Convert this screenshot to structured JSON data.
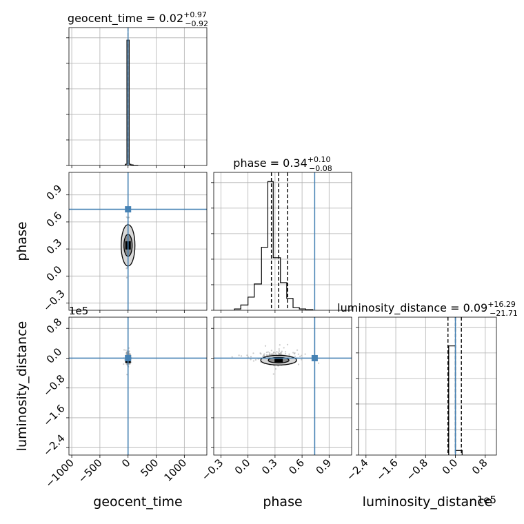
{
  "chart_data": {
    "type": "corner",
    "parameters": [
      {
        "name": "geocent_time",
        "xlabel": "geocent_time",
        "title_prefix": "geocent_time = ",
        "median": "0.02",
        "plus": "+0.97",
        "minus": "−0.92",
        "range": [
          -1050,
          1400
        ],
        "ticks": [
          -1000,
          -500,
          0,
          500,
          1000
        ],
        "tick_labels": [
          "−1000",
          "−500",
          "0",
          "500",
          "1000"
        ],
        "truth": 0,
        "hist_bins": [
          -50,
          -20,
          20,
          50,
          90,
          180
        ],
        "hist_values": [
          0.01,
          1.0,
          0.01,
          0.005,
          0.0
        ],
        "quantiles": [
          -0.9,
          0.02,
          0.99
        ],
        "hist_ylim": [
          0,
          1.1
        ]
      },
      {
        "name": "phase",
        "xlabel": "phase",
        "ylabel": "phase",
        "title_prefix": "phase = ",
        "median": "0.34",
        "plus": "+0.10",
        "minus": "−0.08",
        "range": [
          -0.38,
          1.15
        ],
        "ticks": [
          -0.3,
          0.0,
          0.3,
          0.6,
          0.9
        ],
        "tick_labels": [
          "−0.3",
          "0.0",
          "0.3",
          "0.6",
          "0.9"
        ],
        "truth": 0.74,
        "hist_bins": [
          -0.15,
          -0.08,
          0.0,
          0.07,
          0.15,
          0.22,
          0.28,
          0.36,
          0.43,
          0.5,
          0.57,
          0.64,
          0.72
        ],
        "hist_values": [
          0.01,
          0.04,
          0.1,
          0.2,
          0.48,
          0.98,
          0.4,
          0.21,
          0.09,
          0.02,
          0.01,
          0.005
        ],
        "quantiles": [
          0.26,
          0.34,
          0.44
        ],
        "hist_ylim": [
          0,
          1.05
        ]
      },
      {
        "name": "luminosity_distance",
        "xlabel": "luminosity_distance",
        "ylabel": "luminosity_distance",
        "title_prefix": "luminosity_distance = ",
        "median": "0.09",
        "plus": "+16.29",
        "minus": "−21.71",
        "scale_label": "1e5",
        "range": [
          -2.6,
          1.1
        ],
        "ticks": [
          -2.4,
          -1.6,
          -0.8,
          0.0,
          0.8
        ],
        "tick_labels": [
          "−2.4",
          "−1.6",
          "−0.8",
          "0.0",
          "0.8"
        ],
        "truth": 0.0,
        "hist_bins": [
          -0.18,
          0.0,
          0.18
        ],
        "hist_values": [
          0.95,
          0.04
        ],
        "quantiles": [
          -0.2,
          0.0,
          0.16
        ],
        "hist_ylim": [
          0,
          1.2
        ]
      }
    ],
    "truth_color": "#4682b4",
    "line_color": "#000000",
    "scatter_color": "#9e9e9e",
    "grid": true
  }
}
